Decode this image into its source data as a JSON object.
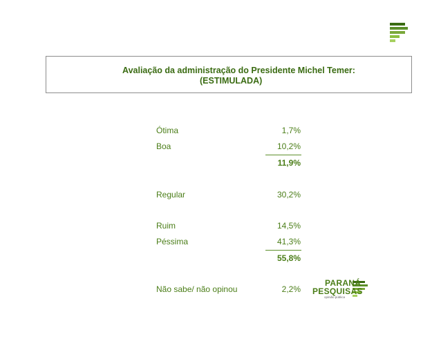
{
  "header": {
    "title_line1": "Avaliação da administração do Presidente Michel Temer:",
    "title_line2": "(ESTIMULADA)"
  },
  "rows": [
    {
      "label": "Ótima",
      "value": "1,7%"
    },
    {
      "label": "Boa",
      "value": "10,2%"
    },
    {
      "label": "",
      "value": "11,9%",
      "bold": true
    },
    {
      "label": "Regular",
      "value": "30,2%"
    },
    {
      "label": "Ruim",
      "value": "14,5%"
    },
    {
      "label": "Péssima",
      "value": "41,3%"
    },
    {
      "label": "",
      "value": "55,8%",
      "bold": true
    },
    {
      "label": "Não sabe/ não opinou",
      "value": "2,2%"
    }
  ],
  "brand": {
    "name_line1": "PARANÁ",
    "name_line2": "PESQUISAS",
    "tagline": "opinião pública"
  },
  "colors": {
    "green_dark": "#3a6b12",
    "green_mid": "#4a7d17",
    "green_light": "#8cbf3f"
  }
}
